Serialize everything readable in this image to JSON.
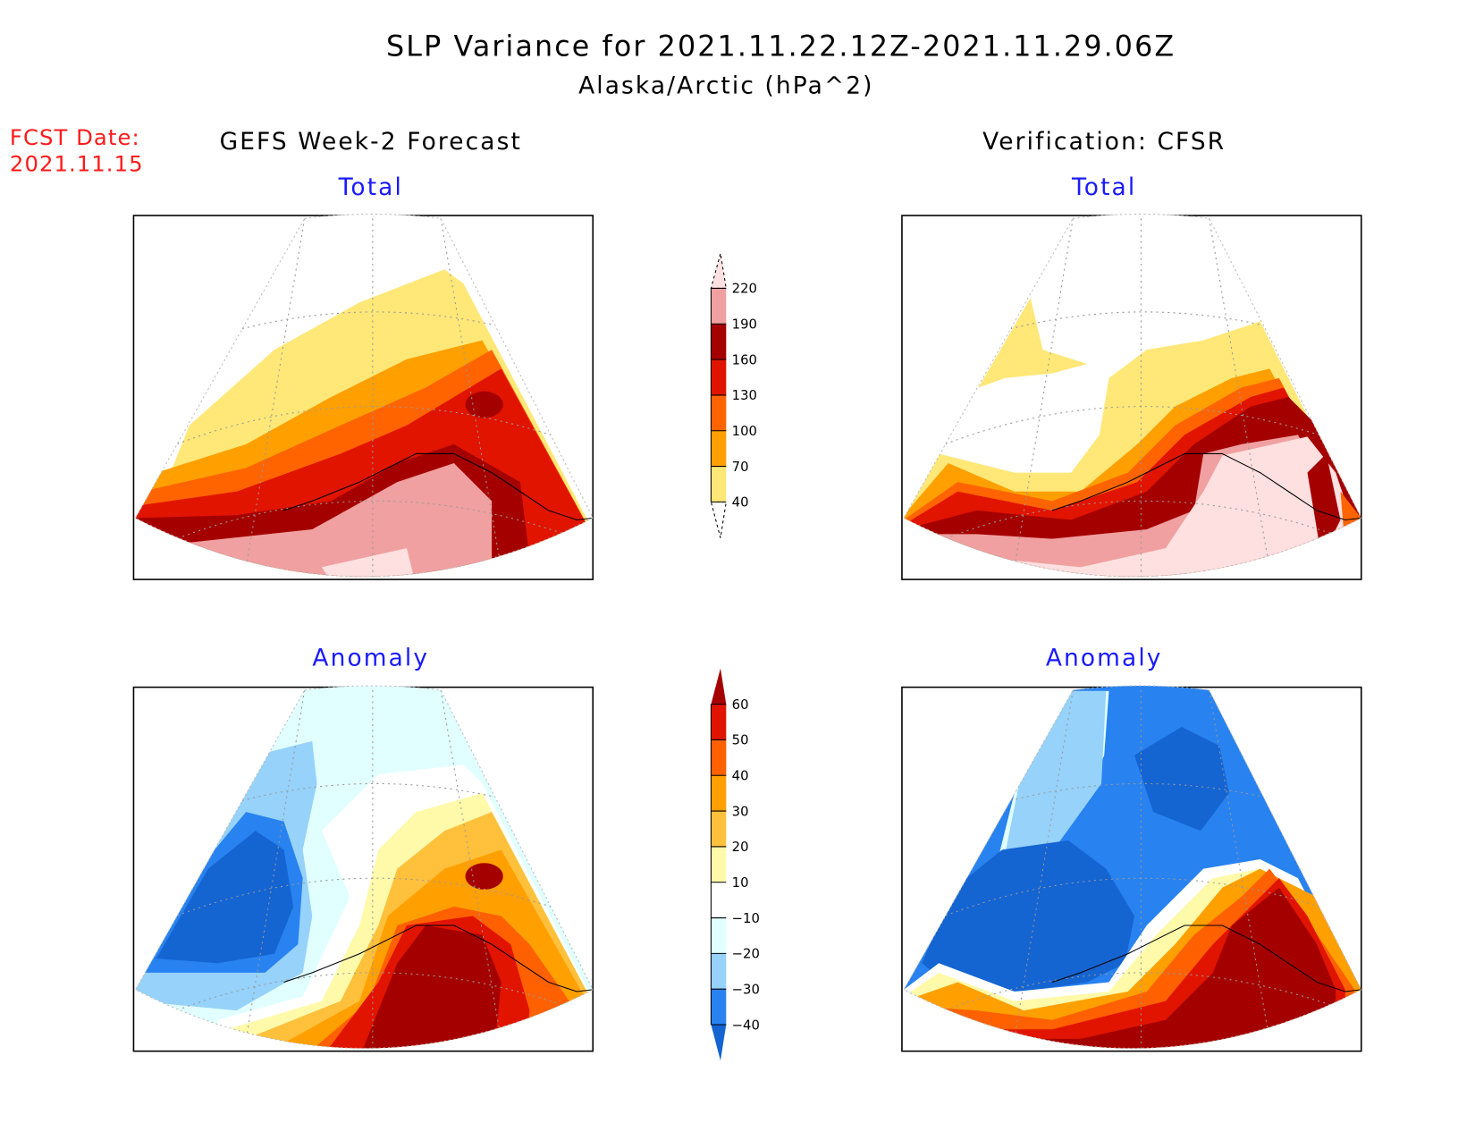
{
  "chart_data": {
    "type": "heatmap",
    "title": "SLP Variance for 2021.11.22.12Z-2021.11.29.06Z",
    "subtitle": "Alaska/Arctic (hPa^2)",
    "fcst_label": "FCST Date:",
    "fcst_date": "2021.11.15",
    "columns": [
      "GEFS Week-2 Forecast",
      "Verification: CFSR"
    ],
    "rows": [
      "Total",
      "Anomaly"
    ],
    "colorbars": [
      {
        "name": "total",
        "levels": [
          40,
          70,
          100,
          130,
          160,
          190,
          220
        ],
        "tick_labels": [
          "40",
          "70",
          "100",
          "130",
          "160",
          "190",
          "220"
        ],
        "colors": [
          "#ffffff",
          "#ffe878",
          "#ffa000",
          "#ff6400",
          "#e11400",
          "#a50000",
          "#f0a0a0",
          "#ffe0e0"
        ]
      },
      {
        "name": "anomaly",
        "levels": [
          -40,
          -30,
          -20,
          -10,
          10,
          20,
          30,
          40,
          50,
          60
        ],
        "tick_labels": [
          "-40",
          "-30",
          "-20",
          "-10",
          "10",
          "20",
          "30",
          "40",
          "50",
          "60"
        ],
        "colors": [
          "#1464d2",
          "#2882f0",
          "#96d2fa",
          "#e1ffff",
          "#ffffff",
          "#fffaaa",
          "#ffc03c",
          "#ffa000",
          "#ff6000",
          "#e11400",
          "#a50000"
        ]
      }
    ]
  }
}
